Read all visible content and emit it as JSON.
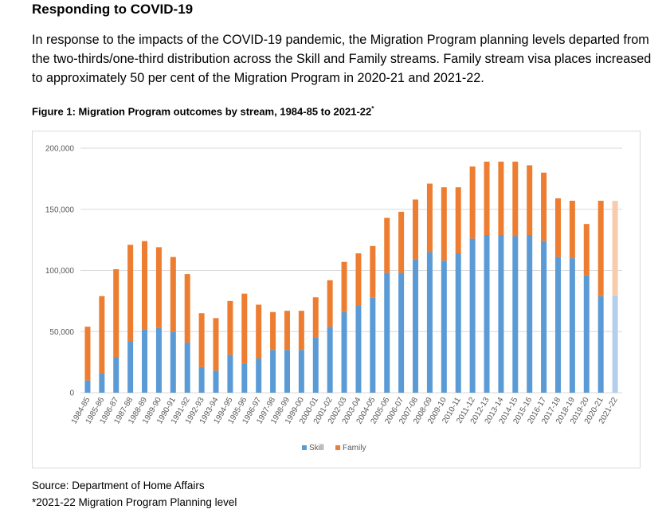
{
  "heading": "Responding to COVID-19",
  "paragraph": "In response to the impacts of the COVID-19 pandemic, the Migration Program planning levels departed from the two-thirds/one-third distribution across the Skill and Family streams. Family stream visa places increased to approximately 50 per cent of the Migration Program in 2020-21 and 2021-22.",
  "figure_caption": "Figure 1: Migration Program outcomes by stream, 1984-85 to 2021-22",
  "figure_caption_marker": "*",
  "source": "Source: Department of Home Affairs",
  "footnote": "*2021-22 Migration Program Planning level",
  "colors": {
    "skill": "#5b9bd5",
    "family": "#ed7d31",
    "skill_planned": "#b4cfec",
    "family_planned": "#f8cbad",
    "grid": "#d9d9d9",
    "axis_text": "#595959"
  },
  "chart_data": {
    "type": "bar",
    "stacked": true,
    "title": "",
    "xlabel": "",
    "ylabel": "",
    "ylim": [
      0,
      200000
    ],
    "yticks": [
      "0",
      "50,000",
      "100,000",
      "150,000",
      "200,000"
    ],
    "grid": true,
    "legend_position": "bottom",
    "categories": [
      "1984-85",
      "1985-86",
      "1986-87",
      "1987-88",
      "1988-89",
      "1989-90",
      "1990-91",
      "1991-92",
      "1992-93",
      "1993-94",
      "1994-95",
      "1995-96",
      "1996-97",
      "1997-98",
      "1998-99",
      "1999-00",
      "2000-01",
      "2001-02",
      "2002-03",
      "2003-04",
      "2004-05",
      "2005-06",
      "2006-07",
      "2007-08",
      "2008-09",
      "2009-10",
      "2010-11",
      "2011-12",
      "2012-13",
      "2013-14",
      "2014-15",
      "2015-16",
      "2016-17",
      "2017-18",
      "2018-19",
      "2019-20",
      "2020-21",
      "2021-22"
    ],
    "series": [
      {
        "name": "Skill",
        "values": [
          10000,
          16000,
          29000,
          42000,
          52000,
          53000,
          50000,
          41000,
          21000,
          18000,
          31000,
          24000,
          28000,
          35000,
          35000,
          35000,
          45000,
          54000,
          66000,
          71000,
          78000,
          98000,
          98000,
          109000,
          115000,
          108000,
          114000,
          126000,
          129000,
          129000,
          128000,
          129000,
          124000,
          111000,
          110000,
          96000,
          79000,
          79600
        ]
      },
      {
        "name": "Family",
        "values": [
          44000,
          63000,
          72000,
          79000,
          72000,
          66000,
          61000,
          56000,
          44000,
          43000,
          44000,
          57000,
          44000,
          31000,
          32000,
          32000,
          33000,
          38000,
          41000,
          43000,
          42000,
          45000,
          50000,
          49000,
          56000,
          60000,
          54000,
          59000,
          60000,
          60000,
          61000,
          57000,
          56000,
          48000,
          47000,
          42000,
          78000,
          77300
        ]
      }
    ],
    "planned_category": "2021-22"
  }
}
